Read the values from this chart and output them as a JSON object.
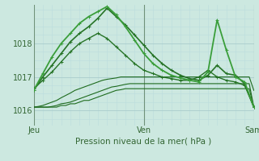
{
  "background_color": "#cce8e0",
  "plot_bg_color": "#cce8e0",
  "grid_color_major": "#aacccc",
  "grid_color_minor": "#bbdddd",
  "xlabel": "Pression niveau de la mer( hPa )",
  "ylim": [
    1015.55,
    1019.15
  ],
  "yticks": [
    1016,
    1017,
    1018
  ],
  "xtick_labels": [
    "Jeu",
    "Ven",
    "Sam"
  ],
  "xtick_positions": [
    0,
    24,
    48
  ],
  "vline_color": "#557755",
  "text_color": "#336633",
  "lines": [
    {
      "x": [
        0,
        1,
        2,
        3,
        4,
        5,
        6,
        7,
        8,
        9,
        10,
        11,
        12,
        13,
        14,
        15,
        16,
        17,
        18,
        19,
        20,
        21,
        22,
        23,
        24,
        25,
        26,
        27,
        28,
        29,
        30,
        31,
        32,
        33,
        34,
        35,
        36,
        37,
        38,
        39,
        40,
        41,
        42,
        43,
        44,
        45,
        46,
        47,
        48
      ],
      "y": [
        1016.1,
        1016.1,
        1016.1,
        1016.1,
        1016.1,
        1016.1,
        1016.15,
        1016.15,
        1016.2,
        1016.2,
        1016.25,
        1016.3,
        1016.3,
        1016.35,
        1016.4,
        1016.45,
        1016.5,
        1016.55,
        1016.6,
        1016.62,
        1016.65,
        1016.65,
        1016.65,
        1016.65,
        1016.65,
        1016.65,
        1016.65,
        1016.65,
        1016.65,
        1016.65,
        1016.65,
        1016.65,
        1016.65,
        1016.65,
        1016.65,
        1016.65,
        1016.65,
        1016.65,
        1016.65,
        1016.65,
        1016.65,
        1016.65,
        1016.65,
        1016.65,
        1016.65,
        1016.65,
        1016.65,
        1016.65,
        1016.1
      ],
      "color": "#1e6b1e",
      "lw": 0.8,
      "marker": null,
      "ls": "-"
    },
    {
      "x": [
        0,
        1,
        2,
        3,
        4,
        5,
        6,
        7,
        8,
        9,
        10,
        11,
        12,
        13,
        14,
        15,
        16,
        17,
        18,
        19,
        20,
        21,
        22,
        23,
        24,
        25,
        26,
        27,
        28,
        29,
        30,
        31,
        32,
        33,
        34,
        35,
        36,
        37,
        38,
        39,
        40,
        41,
        42,
        43,
        44,
        45,
        46,
        47,
        48
      ],
      "y": [
        1016.1,
        1016.1,
        1016.1,
        1016.1,
        1016.12,
        1016.15,
        1016.2,
        1016.22,
        1016.25,
        1016.3,
        1016.35,
        1016.4,
        1016.45,
        1016.5,
        1016.55,
        1016.6,
        1016.65,
        1016.7,
        1016.72,
        1016.75,
        1016.78,
        1016.8,
        1016.8,
        1016.8,
        1016.8,
        1016.8,
        1016.8,
        1016.8,
        1016.8,
        1016.8,
        1016.8,
        1016.8,
        1016.8,
        1016.8,
        1016.8,
        1016.8,
        1016.8,
        1016.8,
        1016.8,
        1016.8,
        1016.8,
        1016.8,
        1016.8,
        1016.8,
        1016.8,
        1016.8,
        1016.8,
        1016.8,
        1016.1
      ],
      "color": "#1e6b1e",
      "lw": 0.8,
      "marker": null,
      "ls": "-"
    },
    {
      "x": [
        0,
        1,
        2,
        3,
        4,
        5,
        6,
        7,
        8,
        9,
        10,
        11,
        12,
        13,
        14,
        15,
        16,
        17,
        18,
        19,
        20,
        21,
        22,
        23,
        24,
        25,
        26,
        27,
        28,
        29,
        30,
        31,
        32,
        33,
        34,
        35,
        36,
        37,
        38,
        39,
        40,
        41,
        42,
        43,
        44,
        45,
        46,
        47,
        48
      ],
      "y": [
        1016.1,
        1016.12,
        1016.15,
        1016.2,
        1016.25,
        1016.3,
        1016.38,
        1016.45,
        1016.52,
        1016.6,
        1016.65,
        1016.7,
        1016.75,
        1016.8,
        1016.85,
        1016.9,
        1016.93,
        1016.95,
        1016.97,
        1017.0,
        1017.0,
        1017.0,
        1017.0,
        1017.0,
        1017.0,
        1017.0,
        1017.0,
        1017.0,
        1017.0,
        1017.0,
        1017.0,
        1017.0,
        1017.0,
        1017.0,
        1017.0,
        1017.0,
        1017.0,
        1017.0,
        1017.0,
        1017.0,
        1017.0,
        1017.0,
        1017.0,
        1017.0,
        1017.0,
        1017.0,
        1017.0,
        1017.0,
        1016.6
      ],
      "color": "#1e6b1e",
      "lw": 0.8,
      "marker": null,
      "ls": "-"
    },
    {
      "x": [
        0,
        2,
        4,
        6,
        8,
        10,
        12,
        14,
        16,
        18,
        20,
        22,
        24,
        26,
        28,
        30,
        32,
        34,
        36,
        38,
        40,
        42,
        44,
        46,
        48
      ],
      "y": [
        1016.65,
        1016.9,
        1017.15,
        1017.45,
        1017.75,
        1018.0,
        1018.15,
        1018.3,
        1018.15,
        1017.9,
        1017.65,
        1017.4,
        1017.2,
        1017.1,
        1017.0,
        1016.95,
        1016.9,
        1016.9,
        1017.0,
        1017.2,
        1017.0,
        1016.9,
        1016.85,
        1016.75,
        1016.1
      ],
      "color": "#267326",
      "lw": 1.0,
      "marker": "+",
      "ls": "-"
    },
    {
      "x": [
        0,
        2,
        4,
        6,
        8,
        10,
        12,
        14,
        16,
        18,
        20,
        22,
        24,
        26,
        28,
        30,
        32,
        34,
        36,
        38,
        40,
        42,
        44,
        46,
        48
      ],
      "y": [
        1016.6,
        1017.0,
        1017.35,
        1017.7,
        1018.05,
        1018.3,
        1018.5,
        1018.75,
        1019.05,
        1018.8,
        1018.55,
        1018.25,
        1017.95,
        1017.65,
        1017.4,
        1017.2,
        1017.05,
        1016.95,
        1016.9,
        1017.05,
        1017.35,
        1017.1,
        1017.05,
        1016.8,
        1016.1
      ],
      "color": "#267326",
      "lw": 1.2,
      "marker": "+",
      "ls": "-"
    },
    {
      "x": [
        0,
        2,
        4,
        6,
        8,
        10,
        12,
        14,
        16,
        18,
        20,
        22,
        24,
        26,
        28,
        30,
        32,
        34,
        36,
        38,
        40,
        42,
        44,
        46,
        48
      ],
      "y": [
        1016.6,
        1017.1,
        1017.6,
        1018.0,
        1018.3,
        1018.6,
        1018.8,
        1018.95,
        1019.1,
        1018.85,
        1018.5,
        1018.1,
        1017.7,
        1017.4,
        1017.2,
        1017.05,
        1016.97,
        1016.9,
        1016.85,
        1017.15,
        1018.7,
        1017.8,
        1017.0,
        1016.85,
        1016.1
      ],
      "color": "#3a9e3a",
      "lw": 1.3,
      "marker": "+",
      "ls": "-"
    }
  ]
}
